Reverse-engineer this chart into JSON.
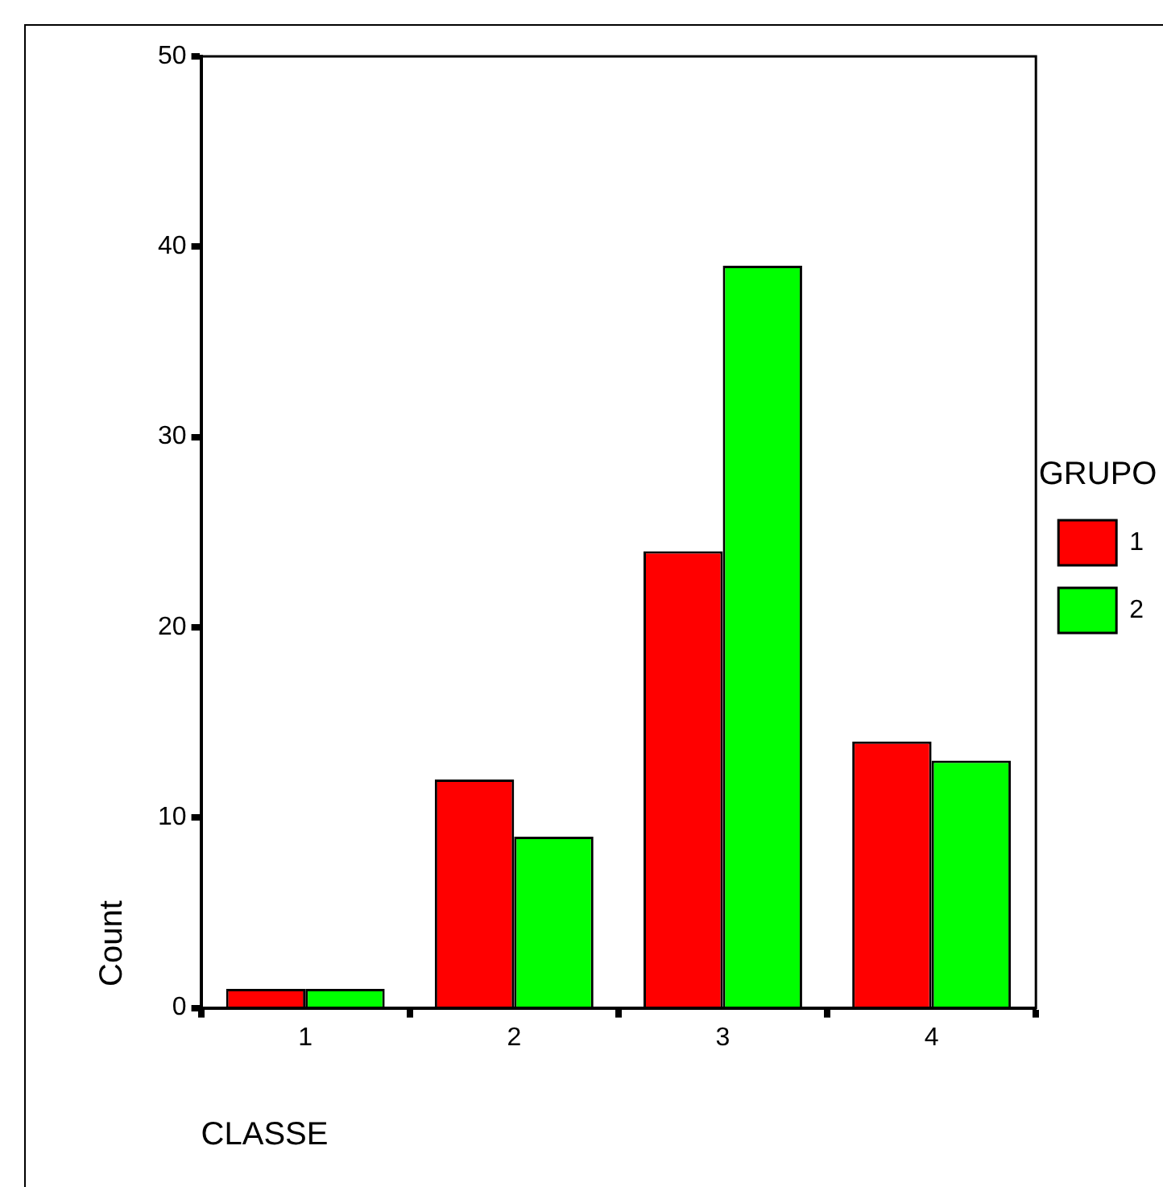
{
  "chart_data": {
    "type": "bar",
    "xlabel": "CLASSE",
    "ylabel": "Count",
    "legend_title": "GRUPO",
    "categories": [
      "1",
      "2",
      "3",
      "4"
    ],
    "series": [
      {
        "name": "1",
        "color": "#ff0000",
        "values": [
          1,
          12,
          24,
          14
        ]
      },
      {
        "name": "2",
        "color": "#00ff00",
        "values": [
          1,
          9,
          39,
          13
        ]
      }
    ],
    "ylim": [
      0,
      50
    ],
    "yticks": [
      0,
      10,
      20,
      30,
      40,
      50
    ],
    "grid": false,
    "legend": "right"
  }
}
